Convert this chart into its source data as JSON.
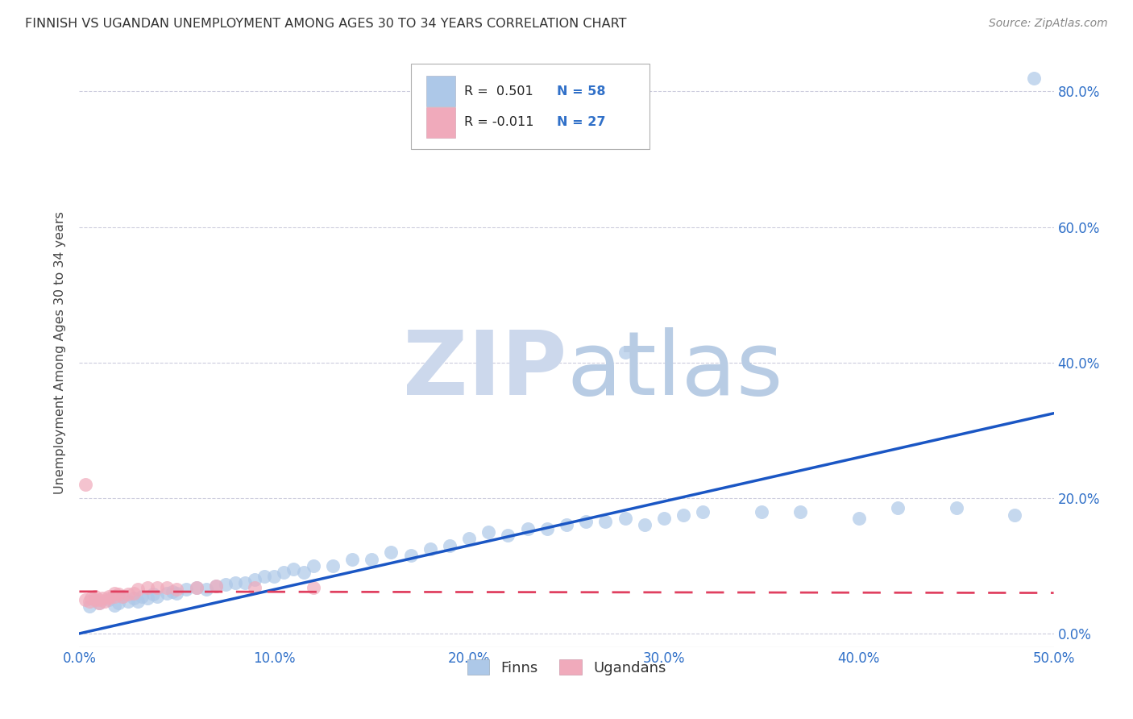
{
  "title": "FINNISH VS UGANDAN UNEMPLOYMENT AMONG AGES 30 TO 34 YEARS CORRELATION CHART",
  "source": "Source: ZipAtlas.com",
  "ylabel": "Unemployment Among Ages 30 to 34 years",
  "xlim": [
    0.0,
    0.5
  ],
  "ylim": [
    -0.02,
    0.85
  ],
  "xticks": [
    0.0,
    0.1,
    0.2,
    0.3,
    0.4,
    0.5
  ],
  "yticks": [
    0.0,
    0.2,
    0.4,
    0.6,
    0.8
  ],
  "xtick_labels": [
    "0.0%",
    "10.0%",
    "20.0%",
    "30.0%",
    "40.0%",
    "50.0%"
  ],
  "ytick_labels_right": [
    "0.0%",
    "20.0%",
    "40.0%",
    "60.0%",
    "80.0%"
  ],
  "blue_color": "#adc8e8",
  "pink_color": "#f0aabb",
  "blue_line_color": "#1a56c4",
  "pink_line_color": "#e04060",
  "tick_color": "#3070c8",
  "grid_color": "#ccccdd",
  "bg_color": "#ffffff",
  "watermark_zip_color": "#ccd8ec",
  "watermark_atlas_color": "#b8cce4",
  "legend_R_blue": "R =  0.501",
  "legend_N_blue": "N = 58",
  "legend_R_pink": "R = -0.011",
  "legend_N_pink": "N = 27",
  "finns_label": "Finns",
  "ugandans_label": "Ugandans",
  "finns_scatter_x": [
    0.005,
    0.01,
    0.015,
    0.018,
    0.02,
    0.022,
    0.025,
    0.028,
    0.03,
    0.032,
    0.035,
    0.038,
    0.04,
    0.045,
    0.048,
    0.05,
    0.055,
    0.06,
    0.065,
    0.07,
    0.075,
    0.08,
    0.085,
    0.09,
    0.095,
    0.1,
    0.105,
    0.11,
    0.115,
    0.12,
    0.13,
    0.14,
    0.15,
    0.16,
    0.17,
    0.18,
    0.19,
    0.2,
    0.21,
    0.22,
    0.23,
    0.24,
    0.25,
    0.26,
    0.27,
    0.28,
    0.29,
    0.3,
    0.31,
    0.32,
    0.35,
    0.37,
    0.4,
    0.42,
    0.45,
    0.48,
    0.28,
    0.49
  ],
  "finns_scatter_y": [
    0.04,
    0.045,
    0.05,
    0.042,
    0.045,
    0.055,
    0.048,
    0.052,
    0.048,
    0.055,
    0.052,
    0.058,
    0.055,
    0.06,
    0.062,
    0.06,
    0.065,
    0.068,
    0.065,
    0.07,
    0.072,
    0.075,
    0.075,
    0.08,
    0.085,
    0.085,
    0.09,
    0.095,
    0.09,
    0.1,
    0.1,
    0.11,
    0.11,
    0.12,
    0.115,
    0.125,
    0.13,
    0.14,
    0.15,
    0.145,
    0.155,
    0.155,
    0.16,
    0.165,
    0.165,
    0.17,
    0.16,
    0.17,
    0.175,
    0.18,
    0.18,
    0.18,
    0.17,
    0.185,
    0.185,
    0.175,
    0.415,
    0.82
  ],
  "ugandans_scatter_x": [
    0.003,
    0.005,
    0.006,
    0.008,
    0.008,
    0.01,
    0.01,
    0.012,
    0.013,
    0.015,
    0.015,
    0.018,
    0.018,
    0.02,
    0.022,
    0.025,
    0.028,
    0.03,
    0.035,
    0.04,
    0.045,
    0.05,
    0.06,
    0.07,
    0.09,
    0.12,
    0.003
  ],
  "ugandans_scatter_y": [
    0.05,
    0.048,
    0.052,
    0.05,
    0.055,
    0.05,
    0.045,
    0.052,
    0.048,
    0.052,
    0.055,
    0.055,
    0.06,
    0.058,
    0.055,
    0.058,
    0.06,
    0.065,
    0.068,
    0.068,
    0.068,
    0.065,
    0.068,
    0.07,
    0.068,
    0.068,
    0.22
  ],
  "blue_trend_x": [
    0.0,
    0.5
  ],
  "blue_trend_y": [
    0.0,
    0.325
  ],
  "pink_trend_x": [
    0.0,
    0.5
  ],
  "pink_trend_y": [
    0.062,
    0.06
  ]
}
